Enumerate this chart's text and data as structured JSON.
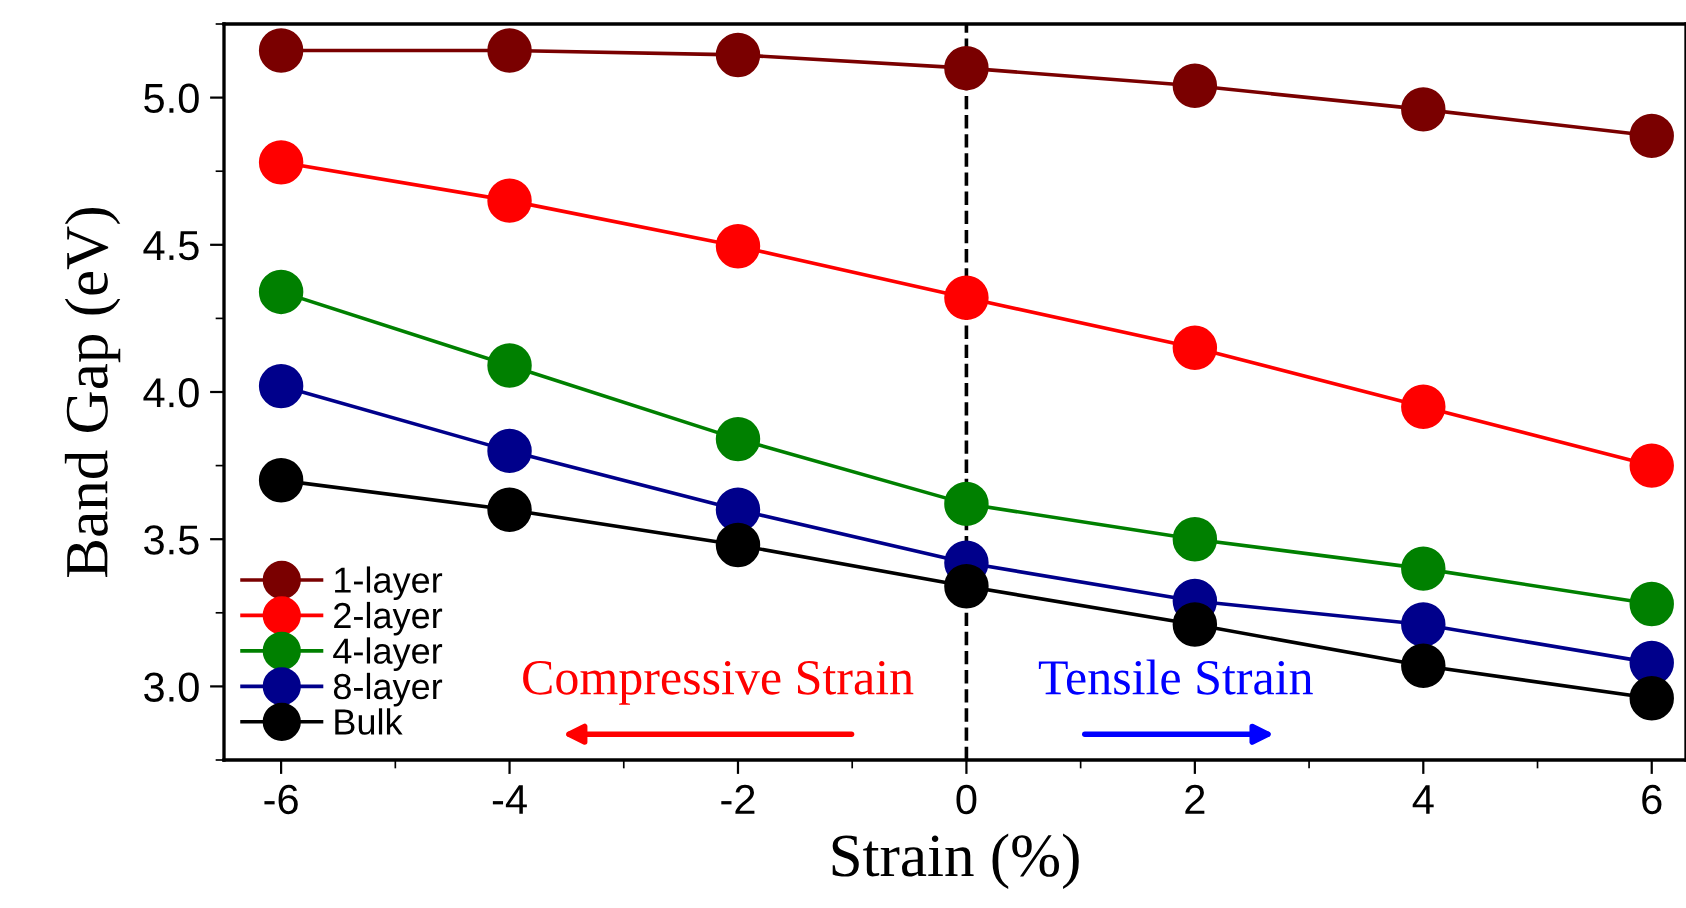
{
  "chart_data": {
    "type": "line",
    "xlabel": "Strain (%)",
    "ylabel": "Band Gap (eV)",
    "x": [
      -6,
      -4,
      -2,
      0,
      2,
      4,
      6
    ],
    "series": [
      {
        "name": "1-layer",
        "color": "#7a0000",
        "values": [
          5.16,
          5.16,
          5.145,
          5.1,
          5.04,
          4.96,
          4.87
        ]
      },
      {
        "name": "2-layer",
        "color": "#ff0000",
        "values": [
          4.78,
          4.65,
          4.495,
          4.32,
          4.15,
          3.95,
          3.75
        ]
      },
      {
        "name": "4-layer",
        "color": "#008000",
        "values": [
          4.34,
          4.09,
          3.84,
          3.62,
          3.5,
          3.4,
          3.28
        ]
      },
      {
        "name": "8-layer",
        "color": "#00008b",
        "values": [
          4.02,
          3.8,
          3.6,
          3.42,
          3.29,
          3.21,
          3.08
        ]
      },
      {
        "name": "Bulk",
        "color": "#000000",
        "values": [
          3.7,
          3.6,
          3.48,
          3.34,
          3.21,
          3.07,
          2.96
        ]
      }
    ],
    "xlim": [
      -6.5,
      6.3
    ],
    "ylim": [
      2.75,
      5.25
    ],
    "xticks": [
      {
        "value": -6,
        "label": "-6"
      },
      {
        "value": -4,
        "label": "-4"
      },
      {
        "value": -2,
        "label": "-2"
      },
      0,
      2,
      4,
      6
    ],
    "yticks": [
      {
        "value": 3.0,
        "label": "3.0"
      },
      {
        "value": 3.5,
        "label": "3.5"
      },
      {
        "value": 4.0,
        "label": "4.0"
      },
      {
        "value": 4.5,
        "label": "4.5"
      },
      {
        "value": 5.0,
        "label": "5.0"
      }
    ],
    "ref_lines": [
      {
        "axis": "x",
        "value": 0,
        "color": "#000000",
        "line_style": "dashed"
      }
    ],
    "annotations": [
      "Compressive Strain",
      "Tensile Strain"
    ],
    "marker": "circle",
    "line_style": "solid",
    "grid": false,
    "legend": "bottom left"
  }
}
